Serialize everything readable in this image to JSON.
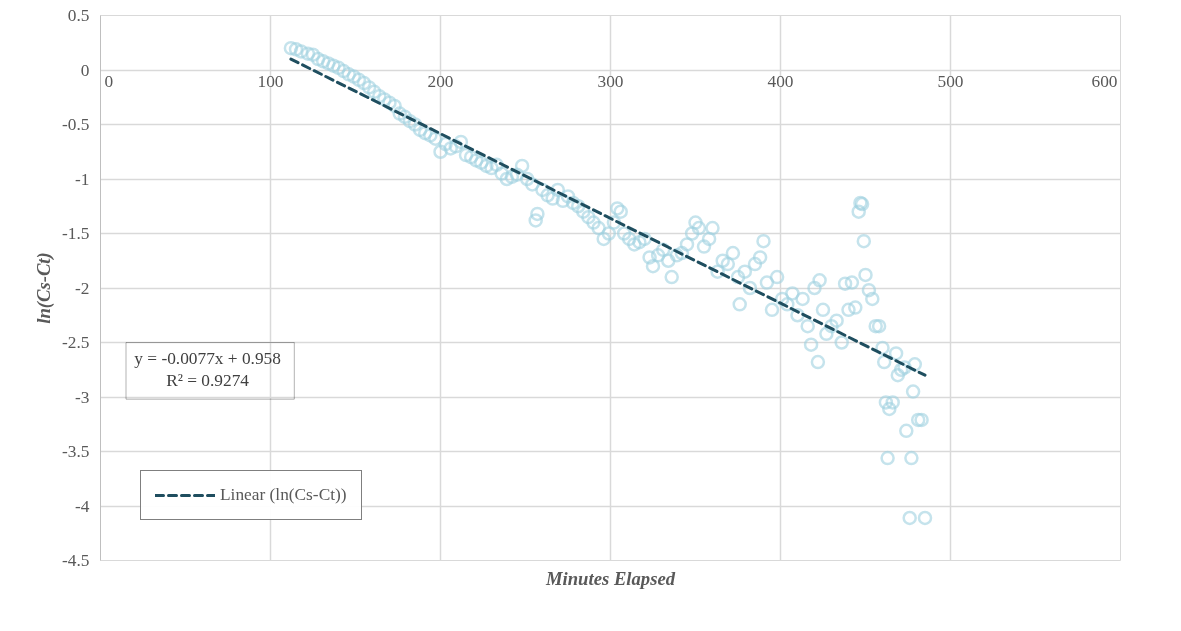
{
  "chart_data": {
    "type": "scatter",
    "xlabel": "Minutes Elapsed",
    "ylabel": "ln(Cs-Ct)",
    "xlim": [
      0,
      600
    ],
    "xticks": [
      0,
      100,
      200,
      300,
      400,
      500,
      600
    ],
    "ylim": [
      -4.5,
      0.5
    ],
    "yticks": [
      -4.5,
      -4,
      -3.5,
      -3,
      -2.5,
      -2,
      -1.5,
      -1,
      -0.5,
      0,
      0.5
    ],
    "grid": true,
    "legend": "bottom left",
    "annotations": [
      "y = -0.0077x + 0.958",
      "R² = 0.9274"
    ],
    "series": [
      {
        "marker": "circle",
        "color": "#9ed0df",
        "x": [
          112,
          115,
          118,
          122,
          125,
          128,
          131,
          134,
          137,
          140,
          143,
          146,
          149,
          152,
          155,
          158,
          161,
          164,
          167,
          170,
          173,
          176,
          179,
          182,
          185,
          188,
          191,
          194,
          197,
          200,
          203,
          206,
          209,
          212,
          215,
          218,
          221,
          224,
          227,
          230,
          233,
          236,
          239,
          242,
          245,
          248,
          251,
          254,
          256,
          257,
          260,
          263,
          266,
          269,
          272,
          275,
          278,
          281,
          284,
          287,
          290,
          293,
          296,
          299,
          302,
          304,
          306,
          308,
          311,
          314,
          317,
          320,
          323,
          325,
          328,
          331,
          334,
          336,
          339,
          342,
          345,
          348,
          350,
          352,
          355,
          358,
          360,
          363,
          366,
          369,
          372,
          375,
          376,
          379,
          382,
          385,
          388,
          390,
          392,
          395,
          398,
          401,
          404,
          407,
          410,
          413,
          416,
          418,
          420,
          422,
          423,
          425,
          427,
          430,
          433,
          436,
          438,
          440,
          442,
          444,
          446,
          447,
          448,
          449,
          450,
          452,
          454,
          456,
          458,
          460,
          461,
          462,
          463,
          464,
          466,
          468,
          469,
          471,
          473,
          474,
          476,
          477,
          478,
          479,
          481,
          483,
          485
        ],
        "values": [
          0.2,
          0.19,
          0.17,
          0.15,
          0.14,
          0.1,
          0.08,
          0.06,
          0.04,
          0.02,
          -0.01,
          -0.04,
          -0.06,
          -0.09,
          -0.12,
          -0.16,
          -0.2,
          -0.24,
          -0.27,
          -0.3,
          -0.33,
          -0.4,
          -0.43,
          -0.47,
          -0.5,
          -0.55,
          -0.58,
          -0.6,
          -0.63,
          -0.75,
          -0.68,
          -0.72,
          -0.7,
          -0.66,
          -0.78,
          -0.8,
          -0.83,
          -0.85,
          -0.88,
          -0.9,
          -0.87,
          -0.95,
          -1.0,
          -0.98,
          -0.96,
          -0.88,
          -1.0,
          -1.05,
          -1.38,
          -1.32,
          -1.1,
          -1.15,
          -1.18,
          -1.1,
          -1.2,
          -1.16,
          -1.22,
          -1.25,
          -1.3,
          -1.35,
          -1.4,
          -1.45,
          -1.55,
          -1.5,
          -1.4,
          -1.27,
          -1.3,
          -1.5,
          -1.55,
          -1.6,
          -1.58,
          -1.55,
          -1.72,
          -1.8,
          -1.7,
          -1.65,
          -1.75,
          -1.9,
          -1.7,
          -1.68,
          -1.6,
          -1.5,
          -1.4,
          -1.45,
          -1.62,
          -1.55,
          -1.45,
          -1.85,
          -1.75,
          -1.78,
          -1.68,
          -1.9,
          -2.15,
          -1.85,
          -2.0,
          -1.78,
          -1.72,
          -1.57,
          -1.95,
          -2.2,
          -1.9,
          -2.1,
          -2.15,
          -2.05,
          -2.25,
          -2.1,
          -2.35,
          -2.52,
          -2.0,
          -2.68,
          -1.93,
          -2.2,
          -2.42,
          -2.35,
          -2.3,
          -2.5,
          -1.96,
          -2.2,
          -1.95,
          -2.18,
          -1.3,
          -1.22,
          -1.23,
          -1.57,
          -1.88,
          -2.02,
          -2.1,
          -2.35,
          -2.35,
          -2.55,
          -2.68,
          -3.05,
          -3.56,
          -3.11,
          -3.05,
          -2.6,
          -2.8,
          -2.75,
          -2.73,
          -3.31,
          -4.11,
          -3.56,
          -2.95,
          -2.7,
          -3.21,
          -3.21,
          -4.11
        ]
      },
      {
        "type": "line",
        "name": "Linear (ln(Cs-Ct))",
        "color": "#1f4e5f",
        "line_style": "dashed",
        "x": [
          112,
          485
        ],
        "values": [
          0.1,
          -2.8
        ]
      }
    ]
  }
}
